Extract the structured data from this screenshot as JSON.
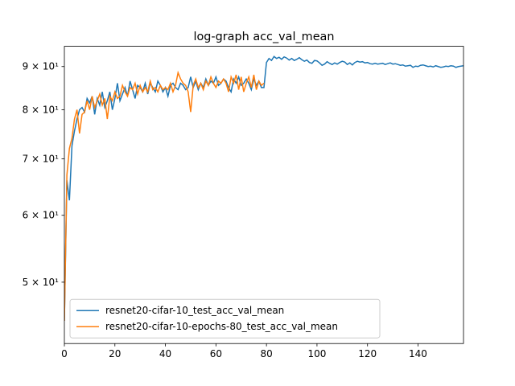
{
  "chart_data": {
    "type": "line",
    "title": "log-graph acc_val_mean",
    "log_y": true,
    "legend": "lower left",
    "xlim": [
      0,
      158
    ],
    "xticks": [
      0,
      20,
      40,
      60,
      80,
      100,
      120,
      140
    ],
    "ylim": [
      42.3,
      95.1
    ],
    "yticks": [
      {
        "value": 50,
        "label": "5 × 10¹"
      },
      {
        "value": 60,
        "label": "6 × 10¹"
      },
      {
        "value": 70,
        "label": "7 × 10¹"
      },
      {
        "value": 80,
        "label": "8 × 10¹"
      },
      {
        "value": 90,
        "label": "9 × 10¹"
      }
    ],
    "x": [
      0,
      1,
      2,
      3,
      4,
      5,
      6,
      7,
      8,
      9,
      10,
      11,
      12,
      13,
      14,
      15,
      16,
      17,
      18,
      19,
      20,
      21,
      22,
      23,
      24,
      25,
      26,
      27,
      28,
      29,
      30,
      31,
      32,
      33,
      34,
      35,
      36,
      37,
      38,
      39,
      40,
      41,
      42,
      43,
      44,
      45,
      46,
      47,
      48,
      49,
      50,
      51,
      52,
      53,
      54,
      55,
      56,
      57,
      58,
      59,
      60,
      61,
      62,
      63,
      64,
      65,
      66,
      67,
      68,
      69,
      70,
      71,
      72,
      73,
      74,
      75,
      76,
      77,
      78,
      79,
      80,
      81,
      82,
      83,
      84,
      85,
      86,
      87,
      88,
      89,
      90,
      91,
      92,
      93,
      94,
      95,
      96,
      97,
      98,
      99,
      100,
      101,
      102,
      103,
      104,
      105,
      106,
      107,
      108,
      109,
      110,
      111,
      112,
      113,
      114,
      115,
      116,
      117,
      118,
      119,
      120,
      121,
      122,
      123,
      124,
      125,
      126,
      127,
      128,
      129,
      130,
      131,
      132,
      133,
      134,
      135,
      136,
      137,
      138,
      139,
      140,
      141,
      142,
      143,
      144,
      145,
      146,
      147,
      148,
      149,
      150,
      151,
      152,
      153,
      154,
      155,
      156,
      157,
      158
    ],
    "series": [
      {
        "name": "resnet20-cifar-10_test_acc_val_mean",
        "color": "#1f77b4",
        "values": [
          45.0,
          66.0,
          62.5,
          72.5,
          75.5,
          78.0,
          80.0,
          80.5,
          79.5,
          82.5,
          81.5,
          83.0,
          79.0,
          82.5,
          81.0,
          84.0,
          80.5,
          82.0,
          84.0,
          80.0,
          82.5,
          86.0,
          82.0,
          83.5,
          85.0,
          83.0,
          86.5,
          84.5,
          82.5,
          85.5,
          85.0,
          84.0,
          86.0,
          83.5,
          86.0,
          85.0,
          84.0,
          86.5,
          85.5,
          84.0,
          85.0,
          83.0,
          85.5,
          86.0,
          85.0,
          84.5,
          86.0,
          85.5,
          84.5,
          85.0,
          87.5,
          85.0,
          86.5,
          84.5,
          86.0,
          85.0,
          87.0,
          85.5,
          86.5,
          86.0,
          87.5,
          85.5,
          86.0,
          87.0,
          86.5,
          85.0,
          84.0,
          87.0,
          86.0,
          87.5,
          85.5,
          86.0,
          87.0,
          86.0,
          84.5,
          87.0,
          85.5,
          86.5,
          85.0,
          85.0,
          91.0,
          92.0,
          91.5,
          92.5,
          92.0,
          92.3,
          91.8,
          92.4,
          92.1,
          91.6,
          92.0,
          91.5,
          91.8,
          92.2,
          91.7,
          91.3,
          91.6,
          91.0,
          90.8,
          91.5,
          91.4,
          90.9,
          90.3,
          90.6,
          91.2,
          90.8,
          90.5,
          90.9,
          90.6,
          91.0,
          91.3,
          91.1,
          90.5,
          90.9,
          90.4,
          91.0,
          91.3,
          91.1,
          91.2,
          90.9,
          91.0,
          90.7,
          90.6,
          90.8,
          90.6,
          90.7,
          90.8,
          90.5,
          90.7,
          90.9,
          90.6,
          90.7,
          90.5,
          90.3,
          90.4,
          90.1,
          90.2,
          90.3,
          89.8,
          90.1,
          90.0,
          90.3,
          90.4,
          90.2,
          90.0,
          90.1,
          89.9,
          90.2,
          90.0,
          89.8,
          89.9,
          90.1,
          90.0,
          90.2,
          90.1,
          89.8,
          90.0,
          90.1,
          90.2
        ]
      },
      {
        "name": "resnet20-cifar-10-epochs-80_test_acc_val_mean",
        "color": "#ff7f0e",
        "values": [
          45.0,
          67.0,
          72.0,
          74.0,
          78.0,
          80.0,
          75.0,
          79.0,
          79.5,
          82.0,
          80.0,
          83.0,
          80.5,
          82.0,
          83.5,
          81.0,
          82.5,
          78.0,
          83.0,
          82.0,
          84.0,
          82.5,
          83.0,
          85.5,
          84.0,
          83.0,
          85.0,
          84.5,
          86.0,
          83.5,
          85.5,
          84.0,
          85.0,
          84.0,
          86.5,
          84.5,
          85.0,
          84.0,
          85.5,
          84.5,
          85.0,
          84.5,
          86.0,
          84.0,
          85.5,
          88.5,
          87.0,
          86.0,
          85.5,
          84.0,
          79.5,
          85.5,
          87.0,
          85.0,
          86.0,
          84.5,
          86.5,
          85.5,
          87.5,
          86.0,
          85.0,
          86.5,
          86.0,
          87.0,
          86.0,
          84.0,
          87.5,
          86.0,
          88.0,
          84.5,
          87.5,
          84.0,
          86.0,
          87.5,
          85.0,
          88.0,
          84.5,
          86.5,
          85.5,
          86.0,
          null,
          null,
          null,
          null,
          null,
          null,
          null,
          null,
          null,
          null,
          null,
          null,
          null,
          null,
          null,
          null,
          null,
          null,
          null,
          null,
          null,
          null,
          null,
          null,
          null,
          null,
          null,
          null,
          null,
          null,
          null,
          null,
          null,
          null,
          null,
          null,
          null,
          null,
          null,
          null,
          null,
          null,
          null,
          null,
          null,
          null,
          null,
          null,
          null,
          null,
          null,
          null,
          null,
          null,
          null,
          null,
          null,
          null,
          null,
          null,
          null,
          null,
          null,
          null,
          null,
          null,
          null,
          null,
          null,
          null,
          null,
          null,
          null,
          null,
          null,
          null,
          null,
          null,
          null
        ]
      }
    ]
  }
}
